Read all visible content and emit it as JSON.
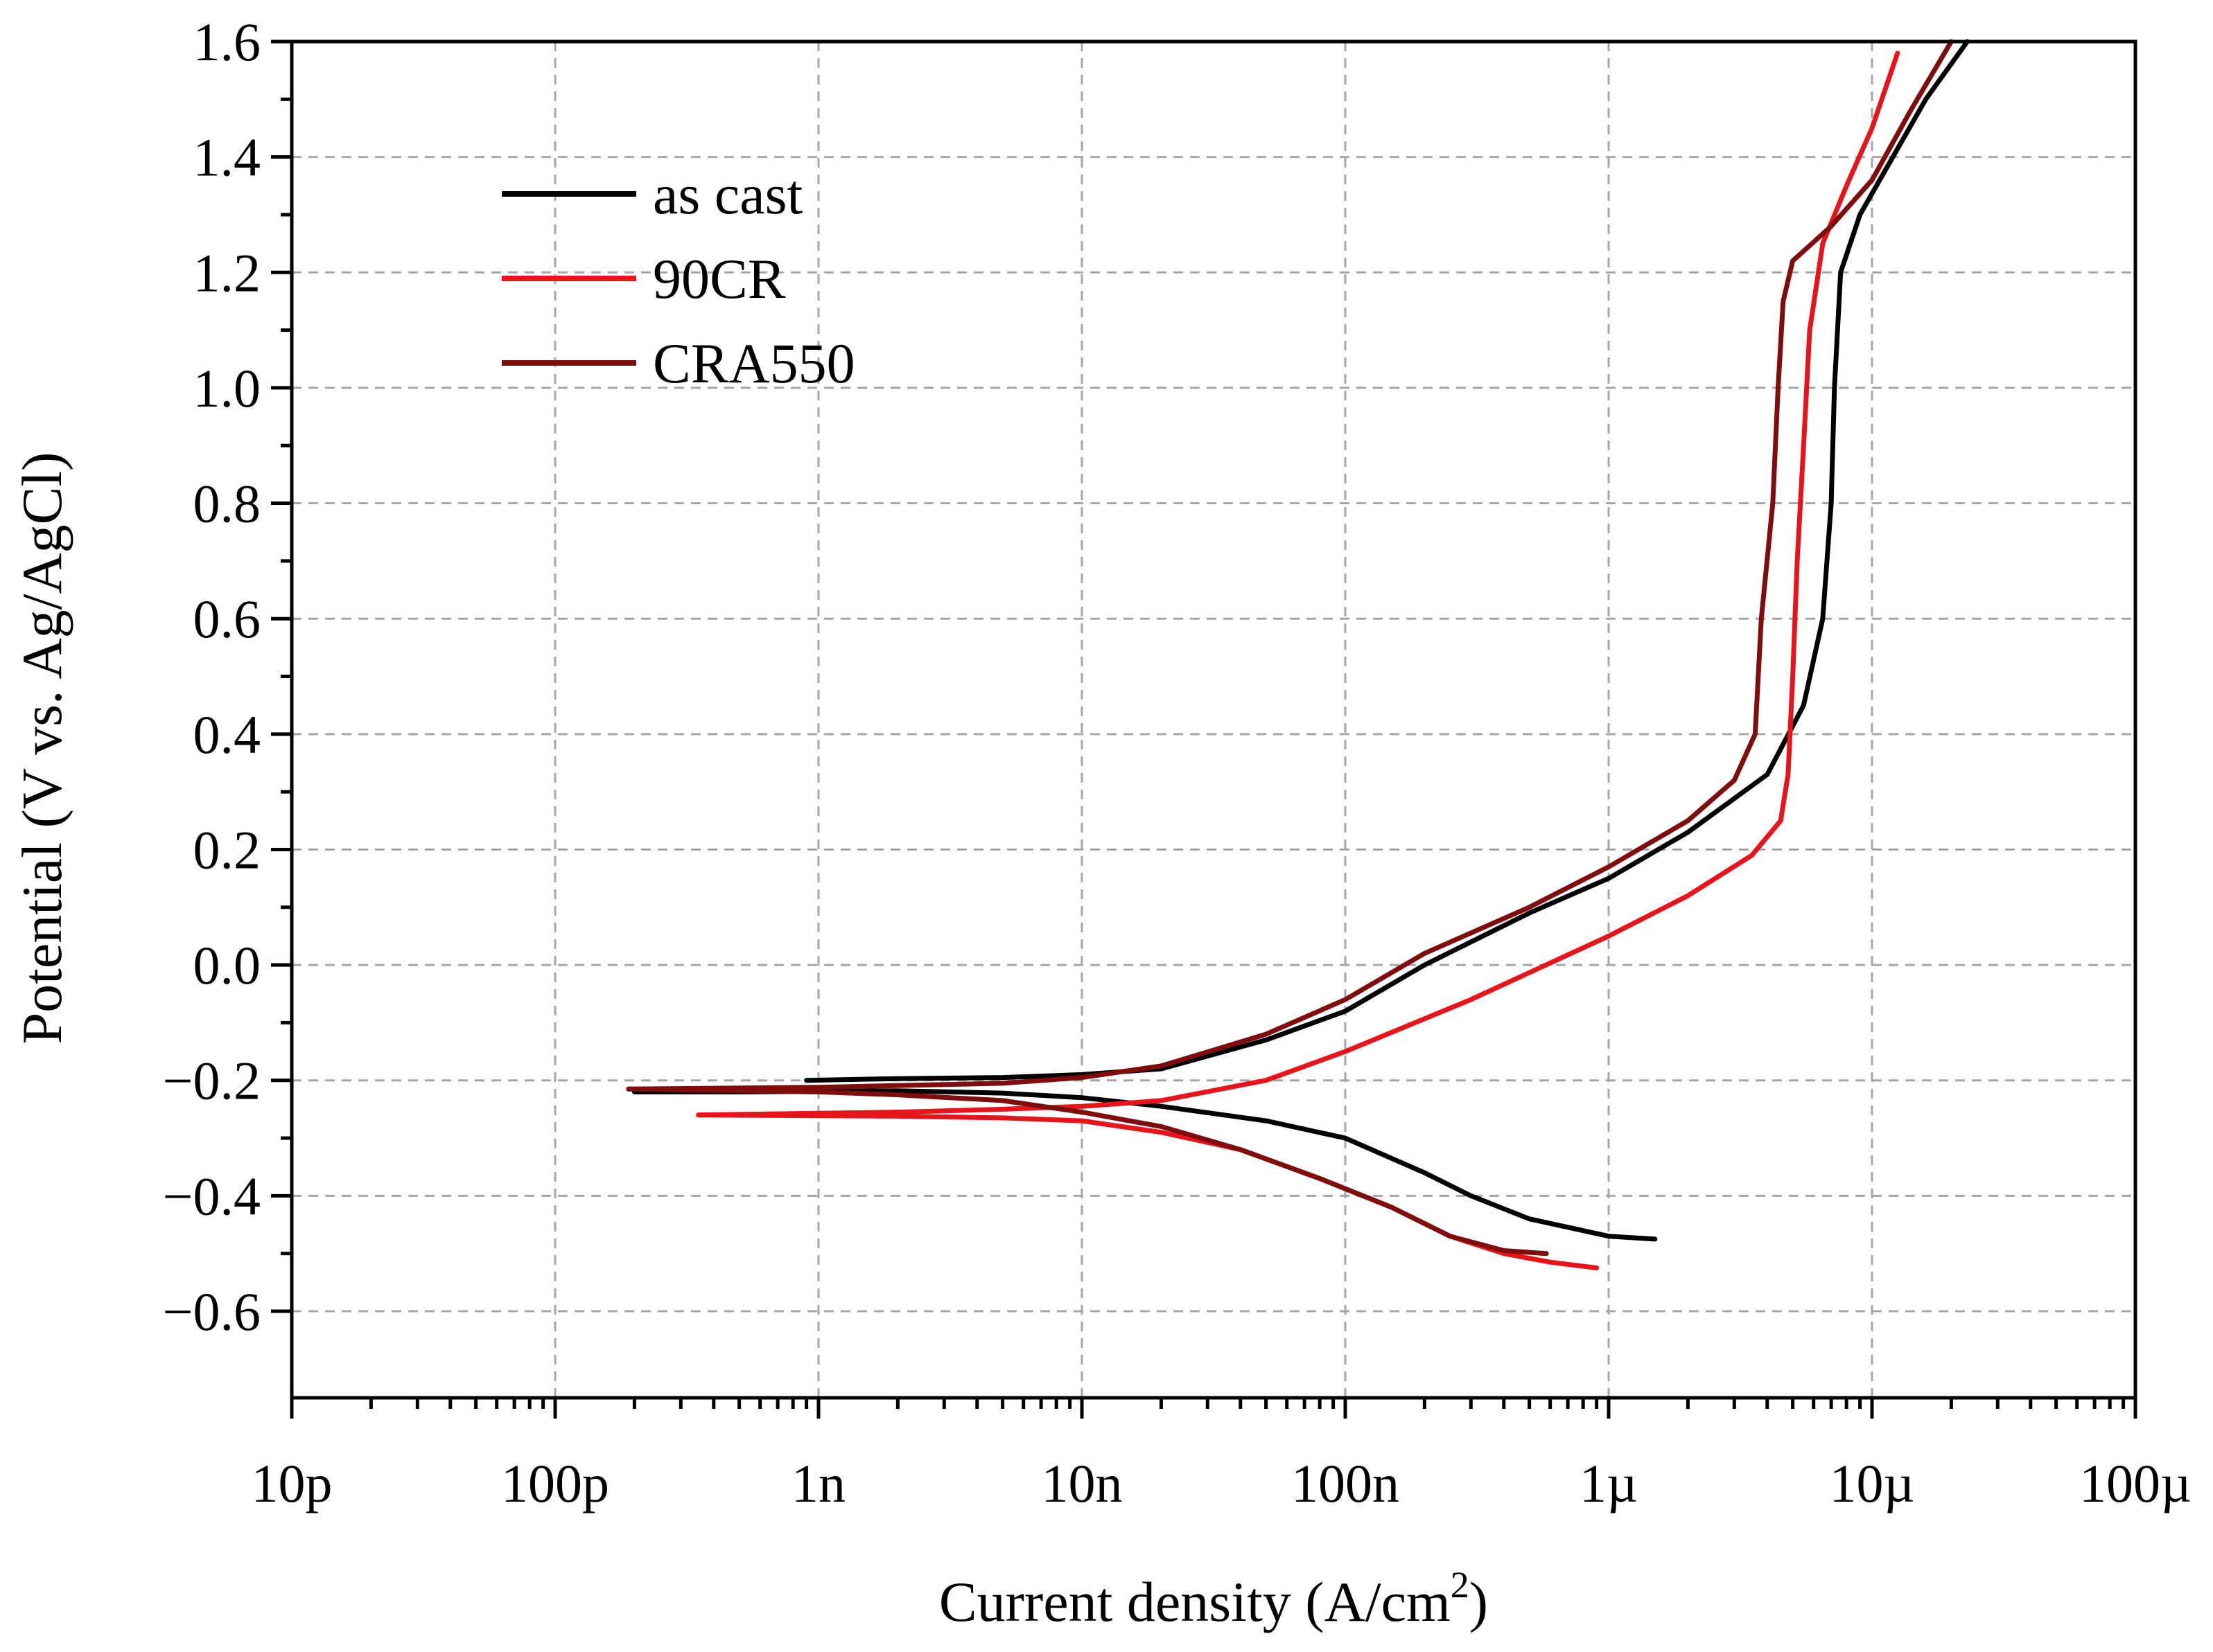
{
  "chart_data": {
    "type": "line",
    "title": "",
    "xlabel": "Current density (A/cm",
    "xlabel_sup": "2",
    "xlabel_end": ")",
    "ylabel": "Potential (V vs. Ag/AgCl)",
    "xscale": "log",
    "xlim": [
      1e-11,
      0.0001
    ],
    "ylim": [
      -0.75,
      1.6
    ],
    "grid": true,
    "legend_position": "top-left",
    "x_ticks": [
      {
        "value": 1e-11,
        "label": "10p"
      },
      {
        "value": 1e-10,
        "label": "100p"
      },
      {
        "value": 1e-09,
        "label": "1n"
      },
      {
        "value": 1e-08,
        "label": "10n"
      },
      {
        "value": 1e-07,
        "label": "100n"
      },
      {
        "value": 1e-06,
        "label": "1µ"
      },
      {
        "value": 1e-05,
        "label": "10µ"
      },
      {
        "value": 0.0001,
        "label": "100µ"
      }
    ],
    "y_ticks": [
      {
        "value": -0.6,
        "label": "−0.6"
      },
      {
        "value": -0.4,
        "label": "−0.4"
      },
      {
        "value": -0.2,
        "label": "−0.2"
      },
      {
        "value": 0.0,
        "label": "0.0"
      },
      {
        "value": 0.2,
        "label": "0.2"
      },
      {
        "value": 0.4,
        "label": "0.4"
      },
      {
        "value": 0.6,
        "label": "0.6"
      },
      {
        "value": 0.8,
        "label": "0.8"
      },
      {
        "value": 1.0,
        "label": "1.0"
      },
      {
        "value": 1.2,
        "label": "1.2"
      },
      {
        "value": 1.4,
        "label": "1.4"
      },
      {
        "value": 1.6,
        "label": "1.6"
      }
    ],
    "series": [
      {
        "name": "as cast",
        "color": "#000000",
        "cathodic": [
          [
            1.5e-06,
            -0.475
          ],
          [
            1e-06,
            -0.47
          ],
          [
            5e-07,
            -0.44
          ],
          [
            3e-07,
            -0.4
          ],
          [
            2e-07,
            -0.36
          ],
          [
            1e-07,
            -0.3
          ],
          [
            5e-08,
            -0.27
          ],
          [
            2e-08,
            -0.245
          ],
          [
            1e-08,
            -0.23
          ],
          [
            5e-09,
            -0.222
          ],
          [
            2e-09,
            -0.218
          ],
          [
            5e-10,
            -0.22
          ],
          [
            2e-10,
            -0.22
          ]
        ],
        "anodic": [
          [
            9e-10,
            -0.2
          ],
          [
            2e-09,
            -0.197
          ],
          [
            5e-09,
            -0.195
          ],
          [
            1e-08,
            -0.19
          ],
          [
            2e-08,
            -0.18
          ],
          [
            5e-08,
            -0.13
          ],
          [
            1e-07,
            -0.08
          ],
          [
            2e-07,
            0.0
          ],
          [
            5e-07,
            0.09
          ],
          [
            1e-06,
            0.15
          ],
          [
            2e-06,
            0.23
          ],
          [
            4e-06,
            0.33
          ],
          [
            5.5e-06,
            0.45
          ],
          [
            6.5e-06,
            0.6
          ],
          [
            7e-06,
            0.8
          ],
          [
            7.2e-06,
            1.0
          ],
          [
            7.6e-06,
            1.2
          ],
          [
            9e-06,
            1.3
          ],
          [
            1.2e-05,
            1.4
          ],
          [
            1.6e-05,
            1.5
          ],
          [
            2.3e-05,
            1.6
          ]
        ]
      },
      {
        "name": "90CR",
        "color": "#e8141c",
        "cathodic": [
          [
            9e-07,
            -0.525
          ],
          [
            6e-07,
            -0.515
          ],
          [
            4e-07,
            -0.5
          ],
          [
            2.5e-07,
            -0.47
          ],
          [
            1.5e-07,
            -0.42
          ],
          [
            8e-08,
            -0.37
          ],
          [
            4e-08,
            -0.32
          ],
          [
            2e-08,
            -0.29
          ],
          [
            1e-08,
            -0.27
          ],
          [
            5e-09,
            -0.265
          ],
          [
            2e-09,
            -0.262
          ],
          [
            3.5e-10,
            -0.26
          ]
        ],
        "anodic": [
          [
            3.5e-10,
            -0.26
          ],
          [
            2e-09,
            -0.255
          ],
          [
            5e-09,
            -0.25
          ],
          [
            1e-08,
            -0.245
          ],
          [
            2e-08,
            -0.235
          ],
          [
            5e-08,
            -0.2
          ],
          [
            1e-07,
            -0.15
          ],
          [
            3e-07,
            -0.06
          ],
          [
            1e-06,
            0.05
          ],
          [
            2e-06,
            0.12
          ],
          [
            3.5e-06,
            0.19
          ],
          [
            4.5e-06,
            0.25
          ],
          [
            4.8e-06,
            0.33
          ],
          [
            5e-06,
            0.5
          ],
          [
            5.2e-06,
            0.7
          ],
          [
            5.5e-06,
            0.9
          ],
          [
            5.8e-06,
            1.1
          ],
          [
            6.5e-06,
            1.25
          ],
          [
            8e-06,
            1.35
          ],
          [
            1e-05,
            1.45
          ],
          [
            1.25e-05,
            1.58
          ]
        ]
      },
      {
        "name": "CRA550",
        "color": "#800d0d",
        "cathodic": [
          [
            5.8e-07,
            -0.5
          ],
          [
            4e-07,
            -0.495
          ],
          [
            2.5e-07,
            -0.47
          ],
          [
            1.5e-07,
            -0.42
          ],
          [
            8e-08,
            -0.37
          ],
          [
            4e-08,
            -0.32
          ],
          [
            2e-08,
            -0.28
          ],
          [
            1e-08,
            -0.255
          ],
          [
            5e-09,
            -0.235
          ],
          [
            2e-09,
            -0.225
          ],
          [
            1e-09,
            -0.22
          ],
          [
            1.9e-10,
            -0.215
          ]
        ],
        "anodic": [
          [
            1.9e-10,
            -0.215
          ],
          [
            1e-09,
            -0.212
          ],
          [
            5e-09,
            -0.205
          ],
          [
            1e-08,
            -0.195
          ],
          [
            2e-08,
            -0.175
          ],
          [
            5e-08,
            -0.12
          ],
          [
            1e-07,
            -0.06
          ],
          [
            2e-07,
            0.02
          ],
          [
            5e-07,
            0.1
          ],
          [
            1e-06,
            0.17
          ],
          [
            2e-06,
            0.25
          ],
          [
            3e-06,
            0.32
          ],
          [
            3.6e-06,
            0.4
          ],
          [
            3.8e-06,
            0.6
          ],
          [
            4.2e-06,
            0.8
          ],
          [
            4.4e-06,
            1.0
          ],
          [
            4.6e-06,
            1.15
          ],
          [
            5e-06,
            1.22
          ],
          [
            7e-06,
            1.28
          ],
          [
            1e-05,
            1.36
          ],
          [
            1.4e-05,
            1.48
          ],
          [
            2e-05,
            1.6
          ]
        ]
      }
    ]
  }
}
